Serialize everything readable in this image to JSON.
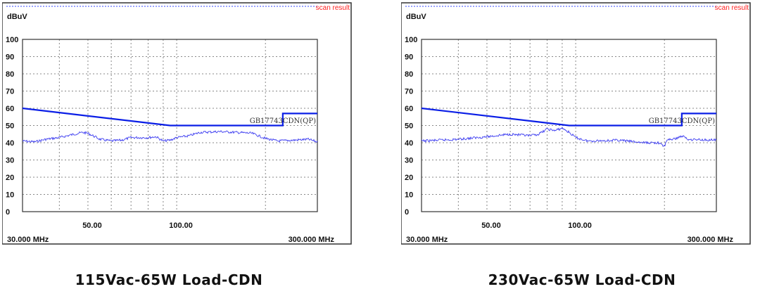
{
  "colors": {
    "limit": "#0a1ee6",
    "trace": "#3c3cf0",
    "grid": "#888888",
    "header": "#ff2020"
  },
  "chart_data": [
    {
      "type": "line",
      "title": "115Vac-65W Load-CDN",
      "header_label": "scan result",
      "ylabel": "dBuV",
      "xscale": "log",
      "xlim": [
        30,
        300
      ],
      "ylim": [
        0,
        100
      ],
      "yticks": [
        "0",
        "10",
        "20",
        "30",
        "40",
        "50",
        "60",
        "70",
        "80",
        "90",
        "100"
      ],
      "xtick_labels": [
        {
          "value": 50,
          "label": "50.00"
        },
        {
          "value": 100,
          "label": "100.00"
        }
      ],
      "x_start_label": "30.000 MHz",
      "x_end_label": "300.000 MHz",
      "grid_x": [
        40,
        50,
        60,
        70,
        80,
        90,
        100,
        200
      ],
      "limit_label": "GB17743CDN(QP)",
      "series": [
        {
          "name": "GB17743CDN(QP) limit",
          "x": [
            30,
            95,
            229,
            229,
            300
          ],
          "y": [
            60,
            50,
            50,
            57,
            57
          ]
        },
        {
          "name": "scan",
          "x": [
            30,
            33,
            36,
            40,
            45,
            48,
            50,
            55,
            60,
            65,
            70,
            80,
            85,
            90,
            95,
            100,
            110,
            120,
            140,
            160,
            180,
            200,
            220,
            250,
            280,
            300
          ],
          "y": [
            41,
            40.5,
            42,
            43,
            45,
            46,
            45.5,
            42,
            41,
            41.5,
            43,
            43,
            43.5,
            41,
            41.5,
            43,
            44,
            46,
            46.5,
            46,
            45.5,
            42.5,
            41,
            41.5,
            42,
            40.5
          ]
        }
      ]
    },
    {
      "type": "line",
      "title": "230Vac-65W Load-CDN",
      "header_label": "scan result",
      "ylabel": "dBuV",
      "xscale": "log",
      "xlim": [
        30,
        300
      ],
      "ylim": [
        0,
        100
      ],
      "yticks": [
        "0",
        "10",
        "20",
        "30",
        "40",
        "50",
        "60",
        "70",
        "80",
        "90",
        "100"
      ],
      "xtick_labels": [
        {
          "value": 50,
          "label": "50.00"
        },
        {
          "value": 100,
          "label": "100.00"
        }
      ],
      "x_start_label": "30.000 MHz",
      "x_end_label": "300.000 MHz",
      "grid_x": [
        40,
        50,
        60,
        70,
        80,
        90,
        100,
        200
      ],
      "limit_label": "GB17743CDN(QP)",
      "series": [
        {
          "name": "GB17743CDN(QP) limit",
          "x": [
            30,
            95,
            229,
            229,
            300
          ],
          "y": [
            60,
            50,
            50,
            57,
            57
          ]
        },
        {
          "name": "scan",
          "x": [
            30,
            40,
            50,
            60,
            70,
            75,
            80,
            85,
            90,
            95,
            100,
            110,
            140,
            170,
            190,
            200,
            205,
            215,
            230,
            240,
            300
          ],
          "y": [
            41,
            42,
            43.5,
            45,
            44,
            45,
            48,
            47,
            48.5,
            46,
            43,
            41,
            41.5,
            40,
            40,
            38,
            42,
            42,
            44,
            42,
            41.5
          ]
        }
      ]
    }
  ]
}
